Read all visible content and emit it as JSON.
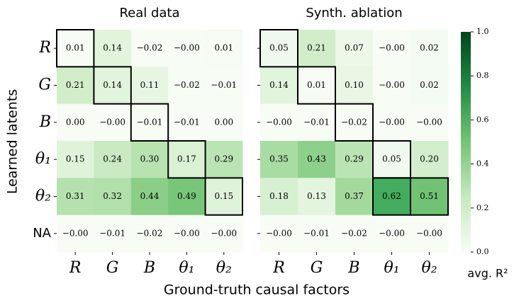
{
  "chart_data": [
    {
      "type": "heatmap",
      "title": "Real data",
      "categories": [
        "R",
        "G",
        "B",
        "θ₁",
        "θ₂"
      ],
      "y_categories": [
        "R",
        "G",
        "B",
        "θ₁",
        "θ₂",
        "NA"
      ],
      "values": [
        [
          0.01,
          0.14,
          -0.02,
          -0.0,
          0.01
        ],
        [
          0.21,
          0.14,
          0.11,
          -0.02,
          -0.01
        ],
        [
          0.0,
          -0.0,
          -0.01,
          -0.01,
          0.0
        ],
        [
          0.15,
          0.24,
          0.3,
          0.17,
          0.29
        ],
        [
          0.31,
          0.32,
          0.44,
          0.49,
          0.15
        ],
        [
          -0.0,
          -0.01,
          -0.02,
          -0.0,
          -0.0
        ]
      ],
      "value_labels": [
        [
          "0.01",
          "0.14",
          "−0.02",
          "−0.00",
          "0.01"
        ],
        [
          "0.21",
          "0.14",
          "0.11",
          "−0.02",
          "−0.01"
        ],
        [
          "0.00",
          "−0.00",
          "−0.01",
          "−0.01",
          "0.00"
        ],
        [
          "0.15",
          "0.24",
          "0.30",
          "0.17",
          "0.29"
        ],
        [
          "0.31",
          "0.32",
          "0.44",
          "0.49",
          "0.15"
        ],
        [
          "−0.00",
          "−0.01",
          "−0.02",
          "−0.00",
          "−0.00"
        ]
      ],
      "highlight": [
        [
          0,
          0
        ],
        [
          1,
          1
        ],
        [
          2,
          2
        ],
        [
          3,
          3
        ],
        [
          4,
          4
        ]
      ]
    },
    {
      "type": "heatmap",
      "title": "Synth. ablation",
      "categories": [
        "R",
        "G",
        "B",
        "θ₁",
        "θ₂"
      ],
      "values": [
        [
          0.05,
          0.21,
          0.07,
          -0.0,
          0.02
        ],
        [
          0.14,
          0.01,
          0.1,
          -0.0,
          0.02
        ],
        [
          -0.0,
          -0.01,
          -0.02,
          -0.0,
          -0.0
        ],
        [
          0.35,
          0.43,
          0.29,
          0.05,
          0.2
        ],
        [
          0.18,
          0.13,
          0.37,
          0.62,
          0.51
        ],
        [
          -0.0,
          -0.01,
          -0.02,
          -0.0,
          -0.0
        ]
      ],
      "value_labels": [
        [
          "0.05",
          "0.21",
          "0.07",
          "−0.00",
          "0.02"
        ],
        [
          "0.14",
          "0.01",
          "0.10",
          "−0.00",
          "0.02"
        ],
        [
          "−0.00",
          "−0.01",
          "−0.02",
          "−0.00",
          "−0.00"
        ],
        [
          "0.35",
          "0.43",
          "0.29",
          "0.05",
          "0.20"
        ],
        [
          "0.18",
          "0.13",
          "0.37",
          "0.62",
          "0.51"
        ],
        [
          "−0.00",
          "−0.01",
          "−0.02",
          "−0.00",
          "−0.00"
        ]
      ],
      "highlight": [
        [
          0,
          0
        ],
        [
          1,
          1
        ],
        [
          2,
          2
        ],
        [
          3,
          3
        ],
        [
          4,
          3
        ],
        [
          4,
          4
        ]
      ]
    }
  ],
  "xlabel": "Ground-truth causal factors",
  "ylabel": "Learned latents",
  "colorbar": {
    "label": "avg. R²",
    "ylim": [
      0,
      1
    ],
    "yticks": [
      {
        "value": 0,
        "label": "0.0"
      },
      0.2,
      0.4,
      0.6,
      0.8,
      {
        "value": 1,
        "label": "1.0"
      }
    ]
  }
}
